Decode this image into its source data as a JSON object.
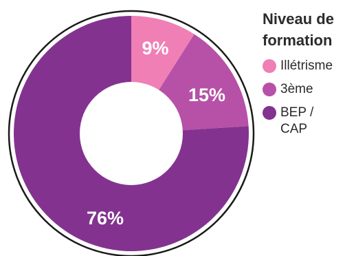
{
  "chart_data": {
    "type": "pie",
    "donut": true,
    "legend_title": "Niveau de formation",
    "legend_position": "right",
    "slices": [
      {
        "name": "Illétrisme",
        "value": 9,
        "label": "9%",
        "color": "#ef7fb5"
      },
      {
        "name": "3ème",
        "value": 15,
        "label": "15%",
        "color": "#b651a7"
      },
      {
        "name": "BEP / CAP",
        "value": 76,
        "label": "76%",
        "color": "#83338f"
      }
    ]
  }
}
